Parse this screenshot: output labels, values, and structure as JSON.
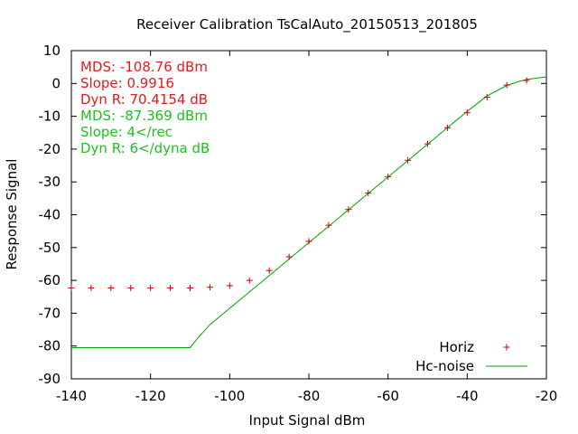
{
  "chart_data": {
    "type": "scatter",
    "title": "Receiver Calibration TsCalAuto_20150513_201805",
    "xlabel": "Input Signal dBm",
    "ylabel": "Response Signal",
    "xlim": [
      -140,
      -20
    ],
    "ylim": [
      -90,
      10
    ],
    "xticks": [
      "-140",
      "-120",
      "-100",
      "-80",
      "-60",
      "-40",
      "-20"
    ],
    "yticks": [
      "10",
      "0",
      "-10",
      "-20",
      "-30",
      "-40",
      "-50",
      "-60",
      "-70",
      "-80",
      "-90"
    ],
    "grid": false,
    "legend_position": "bottom-right",
    "annotations": [
      {
        "text": "MDS: -108.76 dBm",
        "color": "#e41a1c"
      },
      {
        "text": "Slope: 0.9916",
        "color": "#e41a1c"
      },
      {
        "text": "Dyn R: 70.4154 dB",
        "color": "#e41a1c"
      },
      {
        "text": "MDS: -87.369 dBm",
        "color": "#1fbf1f"
      },
      {
        "text": "Slope: 4</rec",
        "color": "#1fbf1f"
      },
      {
        "text": "Dyn R: 6</dyna dB",
        "color": "#1fbf1f"
      }
    ],
    "series": [
      {
        "name": "Horiz",
        "style": "points",
        "marker": "plus",
        "color": "#cc0000",
        "x": [
          -140,
          -135,
          -130,
          -125,
          -120,
          -115,
          -110,
          -105,
          -100,
          -95,
          -90,
          -85,
          -80,
          -75,
          -70,
          -65,
          -60,
          -55,
          -50,
          -45,
          -40,
          -35,
          -30,
          -25
        ],
        "y": [
          -62.3,
          -62.3,
          -62.3,
          -62.3,
          -62.3,
          -62.3,
          -62.3,
          -62.1,
          -61.6,
          -60,
          -57,
          -52.8,
          -48.1,
          -43.2,
          -38.4,
          -33.4,
          -28.4,
          -23.4,
          -18.4,
          -13.5,
          -8.9,
          -4.2,
          -0.5,
          0.9
        ]
      },
      {
        "name": "Hc-noise",
        "style": "line",
        "color": "#00a000",
        "x": [
          -140,
          -110,
          -108,
          -105,
          -100,
          -95,
          -90,
          -85,
          -80,
          -75,
          -70,
          -65,
          -60,
          -55,
          -50,
          -45,
          -40,
          -35,
          -30,
          -27,
          -25,
          -20
        ],
        "y": [
          -80.5,
          -80.5,
          -77.5,
          -73.5,
          -68.5,
          -63.5,
          -58.5,
          -53.5,
          -48.5,
          -43.5,
          -38.5,
          -33.5,
          -28.5,
          -23.5,
          -18.5,
          -13.5,
          -8.5,
          -3.8,
          -0.6,
          0.6,
          1.2,
          2
        ]
      }
    ]
  }
}
